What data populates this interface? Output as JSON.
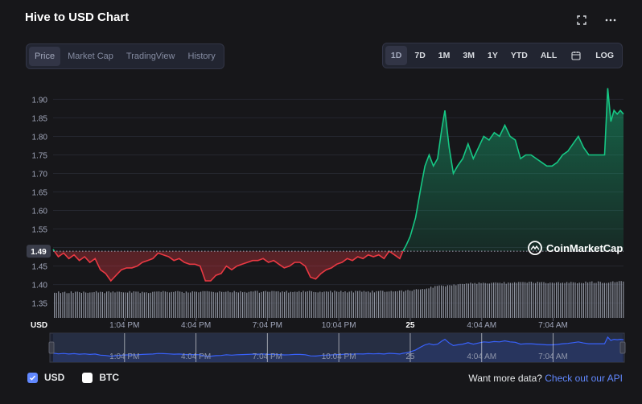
{
  "header": {
    "title": "Hive to USD Chart",
    "fullscreen_icon": "fullscreen-icon",
    "more_icon": "more-icon"
  },
  "view_tabs": [
    {
      "label": "Price",
      "active": true
    },
    {
      "label": "Market Cap",
      "active": false
    },
    {
      "label": "TradingView",
      "active": false
    },
    {
      "label": "History",
      "active": false
    }
  ],
  "range_tabs": [
    {
      "label": "1D",
      "active": true
    },
    {
      "label": "7D",
      "active": false
    },
    {
      "label": "1M",
      "active": false
    },
    {
      "label": "3M",
      "active": false
    },
    {
      "label": "1Y",
      "active": false
    },
    {
      "label": "YTD",
      "active": false
    },
    {
      "label": "ALL",
      "active": false
    },
    {
      "label": "",
      "icon": "calendar-icon",
      "active": false
    },
    {
      "label": "LOG",
      "active": false
    }
  ],
  "watermark": "CoinMarketCap",
  "chart_data": {
    "type": "line",
    "ylabel": "USD",
    "ylim": [
      1.31,
      1.94
    ],
    "yticks": [
      1.35,
      1.4,
      1.45,
      1.5,
      1.55,
      1.6,
      1.65,
      1.7,
      1.75,
      1.8,
      1.85,
      1.9
    ],
    "ytick_labels": [
      "1.35",
      "1.40",
      "1.45",
      "1.50",
      "1.55",
      "1.60",
      "1.65",
      "1.70",
      "1.75",
      "1.80",
      "1.85",
      "1.90"
    ],
    "reference_price": 1.49,
    "reference_label": "1.49",
    "x_tick_labels": [
      "1:04 PM",
      "4:04 PM",
      "7:04 PM",
      "10:04 PM",
      "25",
      "4:04 AM",
      "7:04 AM"
    ],
    "below_color": "#ea3943",
    "above_color": "#16c784",
    "nav_color": "#3861fb",
    "series": [
      {
        "name": "USD",
        "points": [
          [
            0,
            1.495
          ],
          [
            0.5,
            1.475
          ],
          [
            1,
            1.485
          ],
          [
            1.5,
            1.47
          ],
          [
            2,
            1.48
          ],
          [
            2.5,
            1.465
          ],
          [
            3,
            1.475
          ],
          [
            3.5,
            1.46
          ],
          [
            4,
            1.47
          ],
          [
            4.5,
            1.44
          ],
          [
            5,
            1.43
          ],
          [
            5.5,
            1.41
          ],
          [
            6,
            1.425
          ],
          [
            6.5,
            1.44
          ],
          [
            7,
            1.445
          ],
          [
            7.5,
            1.445
          ],
          [
            8,
            1.45
          ],
          [
            8.5,
            1.46
          ],
          [
            9,
            1.465
          ],
          [
            9.5,
            1.47
          ],
          [
            10,
            1.485
          ],
          [
            10.5,
            1.48
          ],
          [
            11,
            1.475
          ],
          [
            11.5,
            1.465
          ],
          [
            12,
            1.47
          ],
          [
            12.5,
            1.46
          ],
          [
            13,
            1.455
          ],
          [
            13.5,
            1.455
          ],
          [
            14,
            1.45
          ],
          [
            14.5,
            1.41
          ],
          [
            15,
            1.41
          ],
          [
            15.5,
            1.425
          ],
          [
            16,
            1.43
          ],
          [
            16.5,
            1.45
          ],
          [
            17,
            1.44
          ],
          [
            17.5,
            1.45
          ],
          [
            18,
            1.455
          ],
          [
            18.5,
            1.46
          ],
          [
            19,
            1.465
          ],
          [
            19.5,
            1.465
          ],
          [
            20,
            1.47
          ],
          [
            20.5,
            1.46
          ],
          [
            21,
            1.465
          ],
          [
            21.5,
            1.455
          ],
          [
            22,
            1.445
          ],
          [
            22.5,
            1.45
          ],
          [
            23,
            1.46
          ],
          [
            23.5,
            1.46
          ],
          [
            24,
            1.45
          ],
          [
            24.5,
            1.42
          ],
          [
            25,
            1.415
          ],
          [
            25.5,
            1.43
          ],
          [
            26,
            1.44
          ],
          [
            26.5,
            1.445
          ],
          [
            27,
            1.455
          ],
          [
            27.5,
            1.46
          ],
          [
            28,
            1.47
          ],
          [
            28.5,
            1.465
          ],
          [
            29,
            1.475
          ],
          [
            29.5,
            1.47
          ],
          [
            30,
            1.48
          ],
          [
            30.5,
            1.475
          ],
          [
            31,
            1.48
          ],
          [
            31.5,
            1.47
          ],
          [
            32,
            1.49
          ],
          [
            32.5,
            1.48
          ],
          [
            33,
            1.47
          ],
          [
            33.3,
            1.49
          ],
          [
            33.6,
            1.505
          ],
          [
            34,
            1.53
          ],
          [
            34.5,
            1.58
          ],
          [
            35,
            1.66
          ],
          [
            35.4,
            1.72
          ],
          [
            35.8,
            1.75
          ],
          [
            36.2,
            1.72
          ],
          [
            36.6,
            1.74
          ],
          [
            37,
            1.82
          ],
          [
            37.3,
            1.87
          ],
          [
            37.7,
            1.77
          ],
          [
            38.1,
            1.7
          ],
          [
            38.5,
            1.72
          ],
          [
            39,
            1.74
          ],
          [
            39.5,
            1.78
          ],
          [
            40,
            1.74
          ],
          [
            40.5,
            1.77
          ],
          [
            41,
            1.8
          ],
          [
            41.5,
            1.79
          ],
          [
            42,
            1.81
          ],
          [
            42.5,
            1.8
          ],
          [
            43,
            1.83
          ],
          [
            43.5,
            1.8
          ],
          [
            44,
            1.79
          ],
          [
            44.5,
            1.74
          ],
          [
            45,
            1.75
          ],
          [
            45.5,
            1.75
          ],
          [
            46,
            1.74
          ],
          [
            46.5,
            1.73
          ],
          [
            47,
            1.72
          ],
          [
            47.5,
            1.72
          ],
          [
            48,
            1.73
          ],
          [
            48.5,
            1.75
          ],
          [
            49,
            1.76
          ],
          [
            49.5,
            1.78
          ],
          [
            50,
            1.8
          ],
          [
            50.5,
            1.77
          ],
          [
            51,
            1.75
          ],
          [
            51.5,
            1.75
          ],
          [
            52,
            1.75
          ],
          [
            52.5,
            1.75
          ],
          [
            52.8,
            1.93
          ],
          [
            53.1,
            1.84
          ],
          [
            53.4,
            1.87
          ],
          [
            53.7,
            1.86
          ],
          [
            54,
            1.87
          ],
          [
            54.3,
            1.86
          ]
        ]
      }
    ],
    "volume_profile": [
      [
        0,
        0.62
      ],
      [
        33,
        0.64
      ],
      [
        35,
        0.7
      ],
      [
        37,
        0.78
      ],
      [
        40,
        0.85
      ],
      [
        45,
        0.86
      ],
      [
        54.3,
        0.88
      ]
    ],
    "x_span": [
      0,
      54.3
    ],
    "x_tick_positions": [
      6.8,
      13.6,
      20.4,
      27.2,
      34,
      40.8,
      47.6
    ]
  },
  "legend": [
    {
      "label": "USD",
      "checked": true
    },
    {
      "label": "BTC",
      "checked": true
    }
  ],
  "footer": {
    "lead": "Want more data?",
    "link": "Check out our API"
  }
}
